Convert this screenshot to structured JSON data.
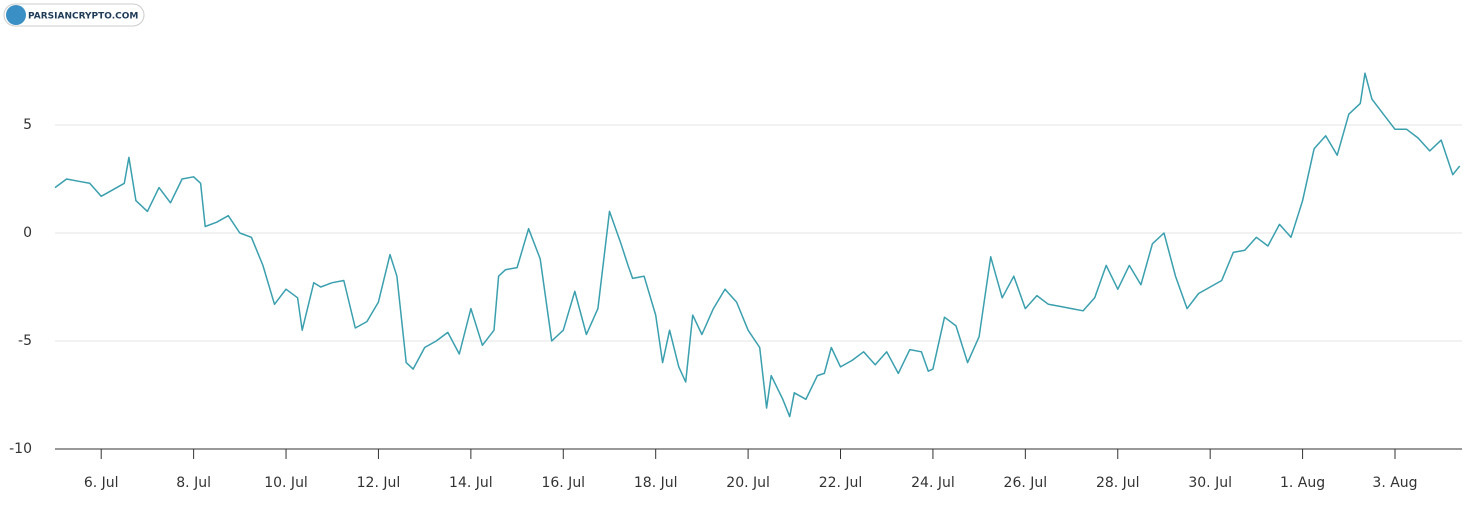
{
  "watermark": "PARSIANCRYPTO.COM",
  "chart_data": {
    "type": "line",
    "color": "#3a9fae",
    "grid": true,
    "x": [
      5,
      5.25,
      5.5,
      5.75,
      6,
      6.25,
      6.5,
      6.6,
      6.75,
      7,
      7.25,
      7.5,
      7.75,
      8,
      8.15,
      8.25,
      8.5,
      8.75,
      9,
      9.25,
      9.5,
      9.75,
      10,
      10.25,
      10.35,
      10.6,
      10.75,
      11,
      11.25,
      11.5,
      11.75,
      12,
      12.25,
      12.4,
      12.6,
      12.75,
      13,
      13.25,
      13.5,
      13.75,
      14,
      14.25,
      14.5,
      14.6,
      14.75,
      15,
      15.25,
      15.5,
      15.75,
      16,
      16.25,
      16.5,
      16.75,
      17,
      17.25,
      17.4,
      17.5,
      17.75,
      18,
      18.15,
      18.3,
      18.5,
      18.65,
      18.8,
      19,
      19.25,
      19.5,
      19.75,
      20,
      20.25,
      20.4,
      20.5,
      20.75,
      20.9,
      21,
      21.25,
      21.5,
      21.65,
      21.8,
      22,
      22.25,
      22.5,
      22.75,
      23,
      23.25,
      23.5,
      23.75,
      23.9,
      24,
      24.25,
      24.5,
      24.75,
      25,
      25.25,
      25.5,
      25.75,
      26,
      26.25,
      26.5,
      26.75,
      27,
      27.25,
      27.5,
      27.75,
      28,
      28.25,
      28.5,
      28.75,
      29,
      29.25,
      29.5,
      29.75,
      30,
      30.25,
      30.5,
      30.75,
      31,
      31.25,
      31.5,
      31.75,
      32,
      32.25,
      32.5,
      32.75,
      33,
      33.25,
      33.35,
      33.5,
      33.75,
      34,
      34.25,
      34.5,
      34.75,
      35,
      35.25,
      35.4
    ],
    "values": [
      2.1,
      2.5,
      2.4,
      2.3,
      1.7,
      2.0,
      2.3,
      3.5,
      1.5,
      1.0,
      2.1,
      1.4,
      2.5,
      2.6,
      2.3,
      0.3,
      0.5,
      0.8,
      0,
      -0.2,
      -1.5,
      -3.3,
      -2.6,
      -3.0,
      -4.5,
      -2.3,
      -2.5,
      -2.3,
      -2.2,
      -4.4,
      -4.1,
      -3.2,
      -1.0,
      -2.0,
      -6.0,
      -6.3,
      -5.3,
      -5.0,
      -4.6,
      -5.6,
      -3.5,
      -5.2,
      -4.5,
      -2.0,
      -1.7,
      -1.6,
      0.2,
      -1.2,
      -5.0,
      -4.5,
      -2.7,
      -4.7,
      -3.5,
      1.0,
      -0.5,
      -1.5,
      -2.1,
      -2.0,
      -3.8,
      -6.0,
      -4.5,
      -6.2,
      -6.9,
      -3.8,
      -4.7,
      -3.5,
      -2.6,
      -3.2,
      -4.5,
      -5.3,
      -8.1,
      -6.6,
      -7.7,
      -8.5,
      -7.4,
      -7.7,
      -6.6,
      -6.5,
      -5.3,
      -6.2,
      -5.9,
      -5.5,
      -6.1,
      -5.5,
      -6.5,
      -5.4,
      -5.5,
      -6.4,
      -6.3,
      -3.9,
      -4.3,
      -6.0,
      -4.8,
      -1.1,
      -3.0,
      -2.0,
      -3.5,
      -2.9,
      -3.3,
      -3.4,
      -3.5,
      -3.6,
      -3.0,
      -1.5,
      -2.6,
      -1.5,
      -2.4,
      -0.5,
      0.0,
      -2.0,
      -3.5,
      -2.8,
      -2.5,
      -2.2,
      -0.9,
      -0.8,
      -0.2,
      -0.6,
      0.4,
      -0.2,
      1.5,
      3.9,
      4.5,
      3.6,
      5.5,
      6.0,
      7.4,
      6.2,
      5.5,
      4.8,
      4.8,
      4.4,
      3.8,
      4.3,
      2.7,
      3.1
    ],
    "xlim": [
      5,
      35.45
    ],
    "xticks": [
      {
        "value": 6,
        "label": "6. Jul"
      },
      {
        "value": 8,
        "label": "8. Jul"
      },
      {
        "value": 10,
        "label": "10. Jul"
      },
      {
        "value": 12,
        "label": "12. Jul"
      },
      {
        "value": 14,
        "label": "14. Jul"
      },
      {
        "value": 16,
        "label": "16. Jul"
      },
      {
        "value": 18,
        "label": "18. Jul"
      },
      {
        "value": 20,
        "label": "20. Jul"
      },
      {
        "value": 22,
        "label": "22. Jul"
      },
      {
        "value": 24,
        "label": "24. Jul"
      },
      {
        "value": 26,
        "label": "26. Jul"
      },
      {
        "value": 28,
        "label": "28. Jul"
      },
      {
        "value": 30,
        "label": "30. Jul"
      },
      {
        "value": 32,
        "label": "1. Aug"
      },
      {
        "value": 34,
        "label": "3. Aug"
      }
    ],
    "ylim": [
      -10,
      10
    ],
    "yticks": [
      -10,
      -5,
      0,
      5
    ]
  }
}
